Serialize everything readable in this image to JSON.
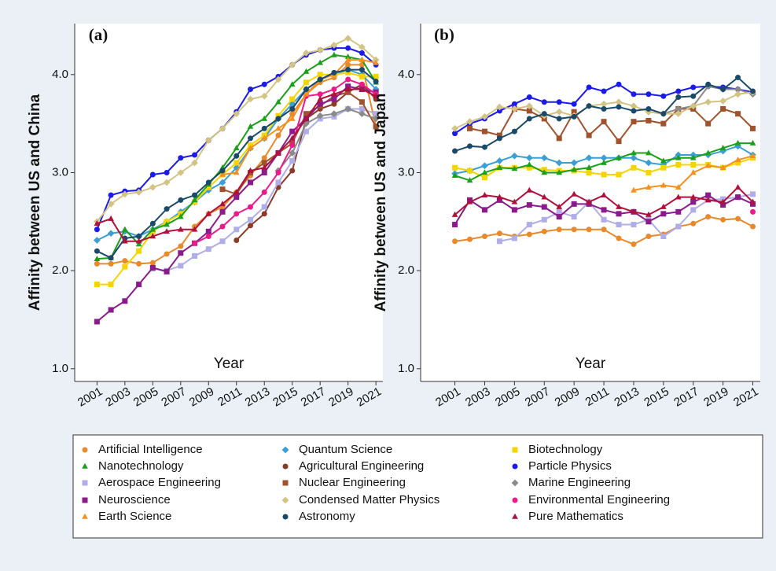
{
  "chart_data": [
    {
      "type": "line",
      "panel_label": "(a)",
      "y_label": "Affinity between US and China",
      "x_label": "Year",
      "x": [
        2001,
        2002,
        2003,
        2004,
        2005,
        2006,
        2007,
        2008,
        2009,
        2010,
        2011,
        2012,
        2013,
        2014,
        2015,
        2016,
        2017,
        2018,
        2019,
        2020,
        2021
      ],
      "xlim": [
        1999.4,
        2021.5
      ],
      "xticks": [
        2001,
        2003,
        2005,
        2007,
        2009,
        2011,
        2013,
        2015,
        2017,
        2019,
        2021
      ],
      "ylim": [
        0.87,
        4.52
      ],
      "yticks": [
        {
          "value": 1,
          "label": "1.0"
        },
        {
          "value": 2,
          "label": "2.0"
        },
        {
          "value": 3,
          "label": "3.0"
        },
        {
          "value": 4,
          "label": "4.0"
        }
      ],
      "series": [
        {
          "name": "Artificial Intelligence",
          "color": "#e8892b",
          "marker": "circle",
          "values": [
            2.07,
            2.07,
            2.1,
            2.07,
            2.08,
            2.17,
            2.25,
            2.45,
            2.58,
            2.65,
            2.8,
            2.97,
            3.15,
            3.38,
            3.6,
            3.8,
            3.92,
            3.97,
            4.1,
            4.1,
            3.47
          ]
        },
        {
          "name": "Quantum Science",
          "color": "#3a9fd5",
          "marker": "diamond",
          "values": [
            2.31,
            2.38,
            2.4,
            2.35,
            2.42,
            2.5,
            2.6,
            2.7,
            2.82,
            2.9,
            3.05,
            3.25,
            3.35,
            3.55,
            3.7,
            3.85,
            3.95,
            4.0,
            4.05,
            4.0,
            3.85
          ]
        },
        {
          "name": "Biotechnology",
          "color": "#f5d400",
          "marker": "square",
          "values": [
            1.86,
            1.86,
            2.04,
            2.2,
            2.4,
            2.5,
            2.58,
            2.7,
            2.85,
            2.98,
            3.1,
            3.28,
            3.38,
            3.58,
            3.75,
            3.92,
            4.0,
            4.0,
            4.02,
            3.98,
            3.98
          ]
        },
        {
          "name": "Nanotechnology",
          "color": "#1aa01a",
          "marker": "triangle",
          "values": [
            2.12,
            2.13,
            2.42,
            2.27,
            2.42,
            2.47,
            2.55,
            2.72,
            2.88,
            3.05,
            3.25,
            3.47,
            3.55,
            3.72,
            3.9,
            4.03,
            4.12,
            4.2,
            4.18,
            4.15,
            3.92
          ]
        },
        {
          "name": "Agricultural Engineering",
          "color": "#8b3a2a",
          "marker": "circle",
          "values": [
            null,
            null,
            null,
            null,
            null,
            null,
            null,
            null,
            null,
            null,
            2.31,
            2.46,
            2.58,
            2.85,
            3.02,
            3.55,
            3.65,
            3.7,
            3.82,
            3.9,
            3.75
          ]
        },
        {
          "name": "Particle Physics",
          "color": "#1a1aee",
          "marker": "circle",
          "values": [
            2.42,
            2.77,
            2.81,
            2.82,
            2.98,
            3.0,
            3.15,
            3.18,
            3.33,
            3.45,
            3.62,
            3.85,
            3.9,
            3.98,
            4.1,
            4.2,
            4.25,
            4.27,
            4.27,
            4.22,
            4.1
          ]
        },
        {
          "name": "Aerospace Engineering",
          "color": "#b0aee8",
          "marker": "square",
          "values": [
            null,
            null,
            null,
            null,
            2.02,
            2.0,
            2.05,
            2.15,
            2.22,
            2.3,
            2.42,
            2.52,
            2.65,
            2.9,
            3.12,
            3.42,
            3.55,
            3.57,
            3.65,
            3.65,
            3.6
          ]
        },
        {
          "name": "Nuclear Engineering",
          "color": "#a0522d",
          "marker": "square",
          "values": [
            null,
            null,
            null,
            null,
            null,
            null,
            null,
            null,
            null,
            2.83,
            2.78,
            3.0,
            3.1,
            3.2,
            3.3,
            3.6,
            3.68,
            3.78,
            3.82,
            3.72,
            3.47
          ]
        },
        {
          "name": "Marine Engineering",
          "color": "#8a8a8a",
          "marker": "diamond",
          "values": [
            null,
            null,
            null,
            null,
            null,
            null,
            null,
            null,
            null,
            null,
            null,
            null,
            null,
            3.02,
            3.2,
            3.5,
            3.58,
            3.6,
            3.65,
            3.6,
            3.55
          ]
        },
        {
          "name": "Neuroscience",
          "color": "#8b1a8b",
          "marker": "square",
          "values": [
            1.48,
            1.6,
            1.69,
            1.86,
            2.03,
            1.99,
            2.18,
            2.28,
            2.4,
            2.6,
            2.75,
            2.9,
            3.0,
            3.2,
            3.42,
            3.55,
            3.7,
            3.75,
            3.88,
            3.85,
            3.82
          ]
        },
        {
          "name": "Condensed Matter Physics",
          "color": "#d4c484",
          "marker": "diamond",
          "values": [
            2.5,
            2.68,
            2.78,
            2.8,
            2.85,
            2.9,
            3.0,
            3.1,
            3.33,
            3.45,
            3.6,
            3.75,
            3.78,
            3.95,
            4.1,
            4.22,
            4.25,
            4.3,
            4.37,
            4.28,
            4.15
          ]
        },
        {
          "name": "Environmental Engineering",
          "color": "#ee1a8a",
          "marker": "circle",
          "values": [
            null,
            null,
            null,
            null,
            null,
            null,
            null,
            2.28,
            2.35,
            2.45,
            2.58,
            2.65,
            2.8,
            3.0,
            3.28,
            3.78,
            3.8,
            3.85,
            3.95,
            3.9,
            3.8
          ]
        },
        {
          "name": "Earth Science",
          "color": "#f5901e",
          "marker": "triangle",
          "values": [
            null,
            null,
            null,
            null,
            null,
            null,
            null,
            null,
            null,
            2.98,
            3.0,
            3.25,
            3.35,
            3.45,
            3.55,
            3.8,
            3.95,
            4.0,
            4.15,
            4.15,
            4.12
          ]
        },
        {
          "name": "Astronomy",
          "color": "#1a4a6a",
          "marker": "circle",
          "values": [
            2.2,
            2.13,
            2.33,
            2.35,
            2.48,
            2.63,
            2.72,
            2.77,
            2.9,
            3.02,
            3.17,
            3.35,
            3.45,
            3.55,
            3.65,
            3.85,
            3.95,
            4.02,
            4.05,
            4.05,
            3.93
          ]
        },
        {
          "name": "Pure Mathematics",
          "color": "#b0103a",
          "marker": "triangle",
          "values": [
            2.48,
            2.53,
            2.3,
            2.3,
            2.35,
            2.4,
            2.42,
            2.42,
            2.58,
            2.68,
            2.8,
            3.02,
            3.05,
            3.2,
            3.35,
            3.55,
            3.75,
            3.8,
            3.85,
            3.85,
            3.78
          ]
        }
      ]
    },
    {
      "type": "line",
      "panel_label": "(b)",
      "y_label": "Affinity between US and Japan",
      "x_label": "Year",
      "x": [
        2001,
        2002,
        2003,
        2004,
        2005,
        2006,
        2007,
        2008,
        2009,
        2010,
        2011,
        2012,
        2013,
        2014,
        2015,
        2016,
        2017,
        2018,
        2019,
        2020,
        2021
      ],
      "xlim": [
        1998.7,
        2021.5
      ],
      "xticks": [
        2001,
        2003,
        2005,
        2007,
        2009,
        2011,
        2013,
        2015,
        2017,
        2019,
        2021
      ],
      "ylim": [
        0.87,
        4.52
      ],
      "yticks": [
        {
          "value": 1,
          "label": "1.0"
        },
        {
          "value": 2,
          "label": "2.0"
        },
        {
          "value": 3,
          "label": "3.0"
        },
        {
          "value": 4,
          "label": "4.0"
        }
      ],
      "series": [
        {
          "color": "#e8892b",
          "marker": "circle",
          "values": [
            2.3,
            2.32,
            2.35,
            2.38,
            2.35,
            2.37,
            2.4,
            2.42,
            2.42,
            2.42,
            2.42,
            2.33,
            2.27,
            2.35,
            2.37,
            2.45,
            2.48,
            2.55,
            2.52,
            2.53,
            2.45
          ]
        },
        {
          "color": "#3a9fd5",
          "marker": "diamond",
          "values": [
            2.99,
            3.02,
            3.07,
            3.12,
            3.17,
            3.15,
            3.15,
            3.1,
            3.1,
            3.15,
            3.15,
            3.15,
            3.15,
            3.1,
            3.08,
            3.18,
            3.18,
            3.18,
            3.22,
            3.27,
            3.18
          ]
        },
        {
          "color": "#f5d400",
          "marker": "square",
          "values": [
            3.05,
            3.02,
            2.95,
            3.05,
            3.05,
            3.05,
            3.03,
            3.02,
            3.02,
            3.0,
            2.98,
            2.98,
            3.05,
            3.0,
            3.05,
            3.08,
            3.08,
            3.08,
            3.05,
            3.1,
            3.15
          ]
        },
        {
          "color": "#1aa01a",
          "marker": "triangle",
          "values": [
            2.97,
            2.92,
            3.0,
            3.05,
            3.04,
            3.08,
            3.0,
            3.0,
            3.03,
            3.05,
            3.1,
            3.15,
            3.2,
            3.2,
            3.12,
            3.15,
            3.15,
            3.2,
            3.25,
            3.3,
            3.3
          ]
        },
        {
          "color": "#8b3a2a",
          "marker": "circle",
          "values": [
            null,
            null,
            null,
            null,
            null,
            null,
            null,
            null,
            null,
            null,
            null,
            null,
            null,
            null,
            null,
            null,
            null,
            null,
            null,
            null,
            null
          ]
        },
        {
          "color": "#1a1aee",
          "marker": "circle",
          "values": [
            3.4,
            3.5,
            3.55,
            3.63,
            3.7,
            3.77,
            3.72,
            3.72,
            3.7,
            3.87,
            3.83,
            3.9,
            3.8,
            3.8,
            3.78,
            3.83,
            3.87,
            3.88,
            3.87,
            3.85,
            3.82
          ]
        },
        {
          "color": "#b0aee8",
          "marker": "square",
          "values": [
            null,
            null,
            null,
            2.3,
            2.33,
            2.47,
            2.52,
            2.6,
            2.55,
            2.7,
            2.52,
            2.47,
            2.47,
            2.52,
            2.35,
            2.45,
            2.62,
            2.72,
            2.73,
            2.75,
            2.78
          ]
        },
        {
          "color": "#a0522d",
          "marker": "square",
          "values": [
            null,
            3.45,
            3.42,
            3.38,
            3.65,
            3.63,
            3.55,
            3.35,
            3.62,
            3.38,
            3.52,
            3.32,
            3.52,
            3.53,
            3.5,
            3.65,
            3.65,
            3.5,
            3.65,
            3.6,
            3.45
          ]
        },
        {
          "color": "#8a8a8a",
          "marker": "diamond",
          "values": [
            null,
            null,
            null,
            null,
            null,
            null,
            null,
            null,
            null,
            null,
            null,
            null,
            null,
            3.62,
            3.6,
            3.65,
            3.68,
            3.88,
            3.85,
            3.85,
            3.8
          ]
        },
        {
          "color": "#8b1a8b",
          "marker": "square",
          "values": [
            2.47,
            2.72,
            2.62,
            2.72,
            2.62,
            2.67,
            2.65,
            2.55,
            2.68,
            2.68,
            2.62,
            2.58,
            2.6,
            2.5,
            2.58,
            2.6,
            2.7,
            2.77,
            2.67,
            2.75,
            2.68
          ]
        },
        {
          "color": "#d4c484",
          "marker": "diamond",
          "values": [
            3.45,
            3.52,
            3.57,
            3.67,
            3.65,
            3.68,
            3.58,
            3.62,
            3.58,
            3.68,
            3.7,
            3.72,
            3.68,
            3.62,
            3.6,
            3.6,
            3.68,
            3.72,
            3.73,
            3.8,
            3.82
          ]
        },
        {
          "color": "#ee1a8a",
          "marker": "circle",
          "values": [
            null,
            null,
            null,
            null,
            null,
            null,
            null,
            null,
            null,
            null,
            null,
            null,
            null,
            null,
            null,
            null,
            null,
            null,
            null,
            null,
            2.6
          ]
        },
        {
          "color": "#f5901e",
          "marker": "triangle",
          "values": [
            null,
            null,
            null,
            null,
            null,
            null,
            null,
            null,
            null,
            null,
            null,
            null,
            2.82,
            2.85,
            2.87,
            2.85,
            3.0,
            3.07,
            3.05,
            3.13,
            3.17
          ]
        },
        {
          "color": "#1a4a6a",
          "marker": "circle",
          "values": [
            3.22,
            3.27,
            3.26,
            3.35,
            3.42,
            3.55,
            3.6,
            3.55,
            3.57,
            3.68,
            3.65,
            3.67,
            3.63,
            3.65,
            3.6,
            3.77,
            3.78,
            3.9,
            3.85,
            3.97,
            3.83
          ]
        },
        {
          "color": "#b0103a",
          "marker": "triangle",
          "values": [
            2.57,
            2.7,
            2.77,
            2.75,
            2.7,
            2.82,
            2.75,
            2.65,
            2.78,
            2.7,
            2.77,
            2.65,
            2.6,
            2.57,
            2.65,
            2.75,
            2.75,
            2.72,
            2.7,
            2.85,
            2.7
          ]
        }
      ]
    }
  ]
}
